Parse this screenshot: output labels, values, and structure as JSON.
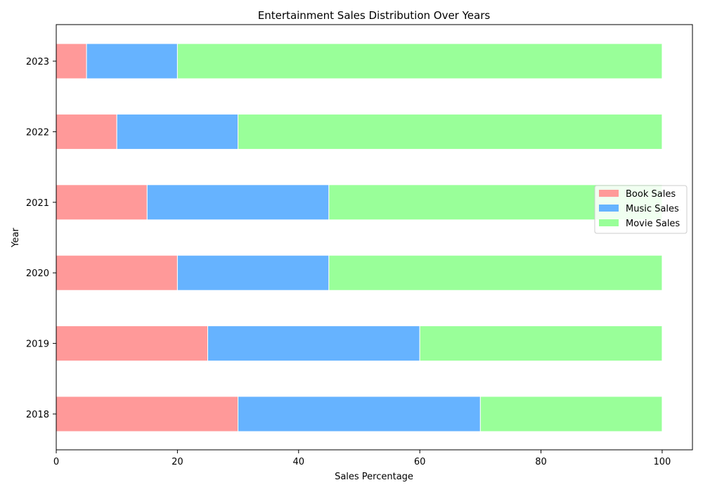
{
  "chart_data": {
    "type": "bar",
    "orientation": "horizontal",
    "stacked": true,
    "title": "Entertainment Sales Distribution Over Years",
    "xlabel": "Sales Percentage",
    "ylabel": "Year",
    "categories": [
      "2018",
      "2019",
      "2020",
      "2021",
      "2022",
      "2023"
    ],
    "xlim": [
      0,
      105
    ],
    "x_ticks": [
      0,
      20,
      40,
      60,
      80,
      100
    ],
    "series": [
      {
        "name": "Book Sales",
        "color": "#ff9999",
        "values": [
          30,
          25,
          20,
          15,
          10,
          5
        ]
      },
      {
        "name": "Music Sales",
        "color": "#66b3ff",
        "values": [
          40,
          35,
          25,
          30,
          20,
          15
        ]
      },
      {
        "name": "Movie Sales",
        "color": "#99ff99",
        "values": [
          30,
          40,
          55,
          55,
          70,
          80
        ]
      }
    ],
    "legend_position": "center-right",
    "grid": false
  }
}
